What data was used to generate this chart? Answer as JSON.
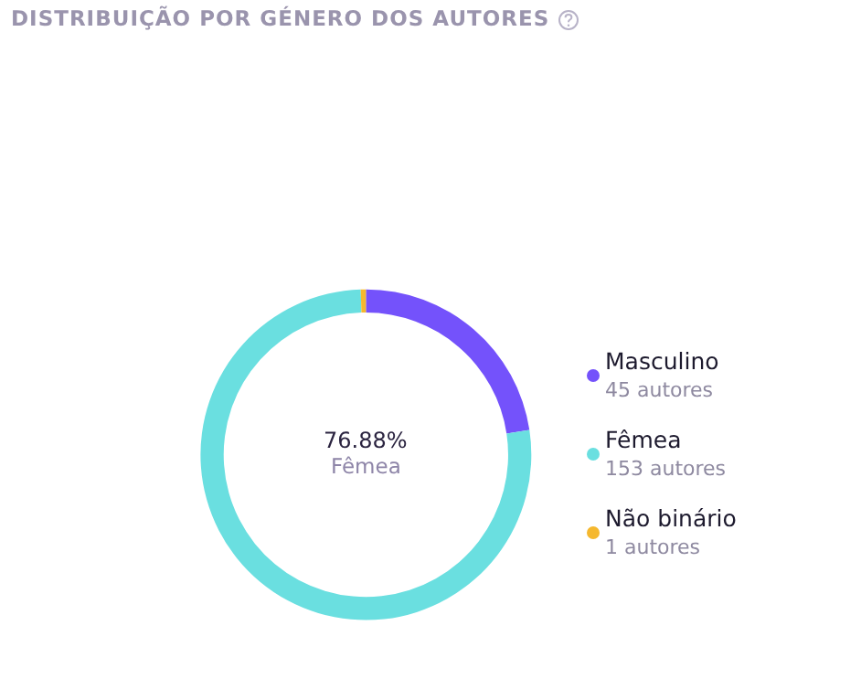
{
  "chart_data": {
    "type": "donut",
    "title": "DISTRIBUIÇÃO POR GÉNERO DOS AUTORES",
    "categories": [
      "Masculino",
      "Fêmea",
      "Não binário"
    ],
    "values": [
      45,
      153,
      1
    ],
    "colors": [
      "#7452fb",
      "#6adfe0",
      "#f5b82e"
    ],
    "value_labels": [
      "45 autores",
      "153 autores",
      "1 autores"
    ],
    "annotations": [
      "76.88%",
      "Fêmea"
    ],
    "legend": "right"
  }
}
